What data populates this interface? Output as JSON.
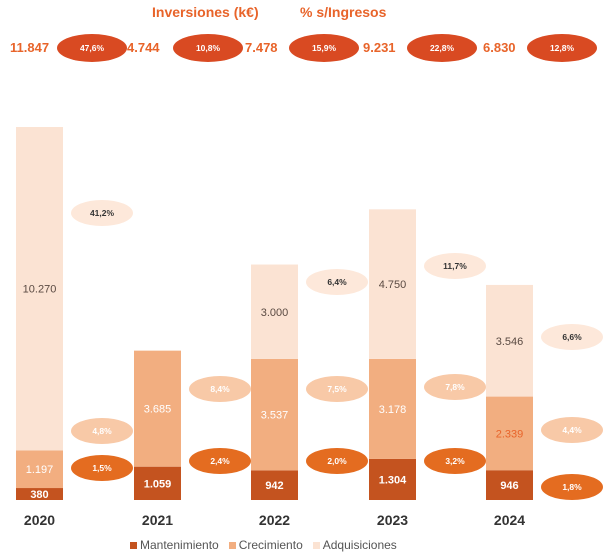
{
  "header": {
    "investments_label": "Inversiones (k€)",
    "percent_label": "% s/Ingresos"
  },
  "colors": {
    "mantenimiento": "#c4531f",
    "crecimiento": "#f2ae80",
    "adquisiciones": "#fbe3d3",
    "header_text": "#e8642a",
    "oval_dark": "#d94a22",
    "oval_mid": "#e46c20",
    "oval_light": "#f8c9a7",
    "oval_pale": "#fde8da"
  },
  "chart_data": {
    "type": "bar",
    "stacked": true,
    "title": "Inversiones (k€) — % s/Ingresos",
    "categories": [
      "2020",
      "2021",
      "2022",
      "2023",
      "2024"
    ],
    "series": [
      {
        "name": "Mantenimiento",
        "values": [
          380,
          1059,
          942,
          1304,
          946
        ],
        "labels": [
          "380",
          "1.059",
          "942",
          "1.304",
          "946"
        ],
        "pct_labels": [
          "1,5%",
          "2,4%",
          "2,0%",
          "3,2%",
          "1,8%"
        ]
      },
      {
        "name": "Crecimiento",
        "values": [
          1197,
          3685,
          3537,
          3178,
          2339
        ],
        "labels": [
          "1.197",
          "3.685",
          "3.537",
          "3.178",
          "2.339"
        ],
        "pct_labels": [
          "4,8%",
          "8,4%",
          "7,5%",
          "7,8%",
          "4,4%"
        ]
      },
      {
        "name": "Adquisiciones",
        "values": [
          10270,
          0,
          3000,
          4750,
          3546
        ],
        "labels": [
          "10.270",
          "",
          "3.000",
          "4.750",
          "3.546"
        ],
        "pct_labels": [
          "41,2%",
          "",
          "6,4%",
          "11,7%",
          "6,6%"
        ]
      }
    ],
    "totals": {
      "values": [
        11847,
        4744,
        7478,
        9231,
        6830
      ],
      "labels": [
        "11.847",
        "4.744",
        "7.478",
        "9.231",
        "6.830"
      ],
      "pct_labels": [
        "47,6%",
        "10,8%",
        "15,9%",
        "22,8%",
        "12,8%"
      ]
    },
    "legend": [
      "Mantenimiento",
      "Crecimiento",
      "Adquisiciones"
    ],
    "legend_position": "bottom",
    "ylim": [
      0,
      12000
    ],
    "grid": false
  }
}
